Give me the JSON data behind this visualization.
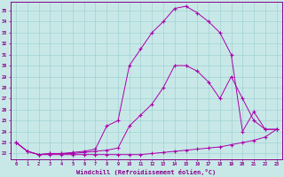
{
  "xlabel": "Windchill (Refroidissement éolien,°C)",
  "bg_color": "#c8e8e8",
  "line_color": "#aa00aa",
  "grid_color": "#99cccc",
  "x_values": [
    0,
    1,
    2,
    3,
    4,
    5,
    6,
    7,
    8,
    9,
    10,
    11,
    12,
    13,
    14,
    15,
    16,
    17,
    18,
    19,
    20,
    21,
    22,
    23
  ],
  "line1": [
    23.0,
    22.2,
    21.9,
    21.9,
    21.9,
    21.9,
    21.9,
    21.9,
    21.9,
    21.9,
    21.9,
    21.9,
    22.0,
    22.1,
    22.2,
    22.3,
    22.4,
    22.5,
    22.6,
    22.8,
    23.0,
    23.2,
    23.5,
    24.2
  ],
  "line2": [
    23.0,
    22.2,
    21.9,
    22.0,
    22.0,
    22.0,
    22.1,
    22.2,
    22.3,
    22.5,
    24.5,
    25.5,
    26.5,
    28.0,
    30.0,
    30.0,
    29.5,
    28.5,
    27.0,
    29.0,
    27.0,
    25.0,
    24.2,
    24.2
  ],
  "line3": [
    23.0,
    22.2,
    21.9,
    22.0,
    22.0,
    22.1,
    22.2,
    22.4,
    24.5,
    25.0,
    30.0,
    31.5,
    33.0,
    34.0,
    35.2,
    35.4,
    34.8,
    34.0,
    33.0,
    31.0,
    24.0,
    25.8,
    24.2,
    24.2
  ],
  "xlim": [
    -0.5,
    23.5
  ],
  "ylim": [
    21.5,
    35.8
  ],
  "yticks": [
    22,
    23,
    24,
    25,
    26,
    27,
    28,
    29,
    30,
    31,
    32,
    33,
    34,
    35
  ],
  "xticks": [
    0,
    1,
    2,
    3,
    4,
    5,
    6,
    7,
    8,
    9,
    10,
    11,
    12,
    13,
    14,
    15,
    16,
    17,
    18,
    19,
    20,
    21,
    22,
    23
  ],
  "tick_color": "#880088",
  "spine_color": "#880088"
}
